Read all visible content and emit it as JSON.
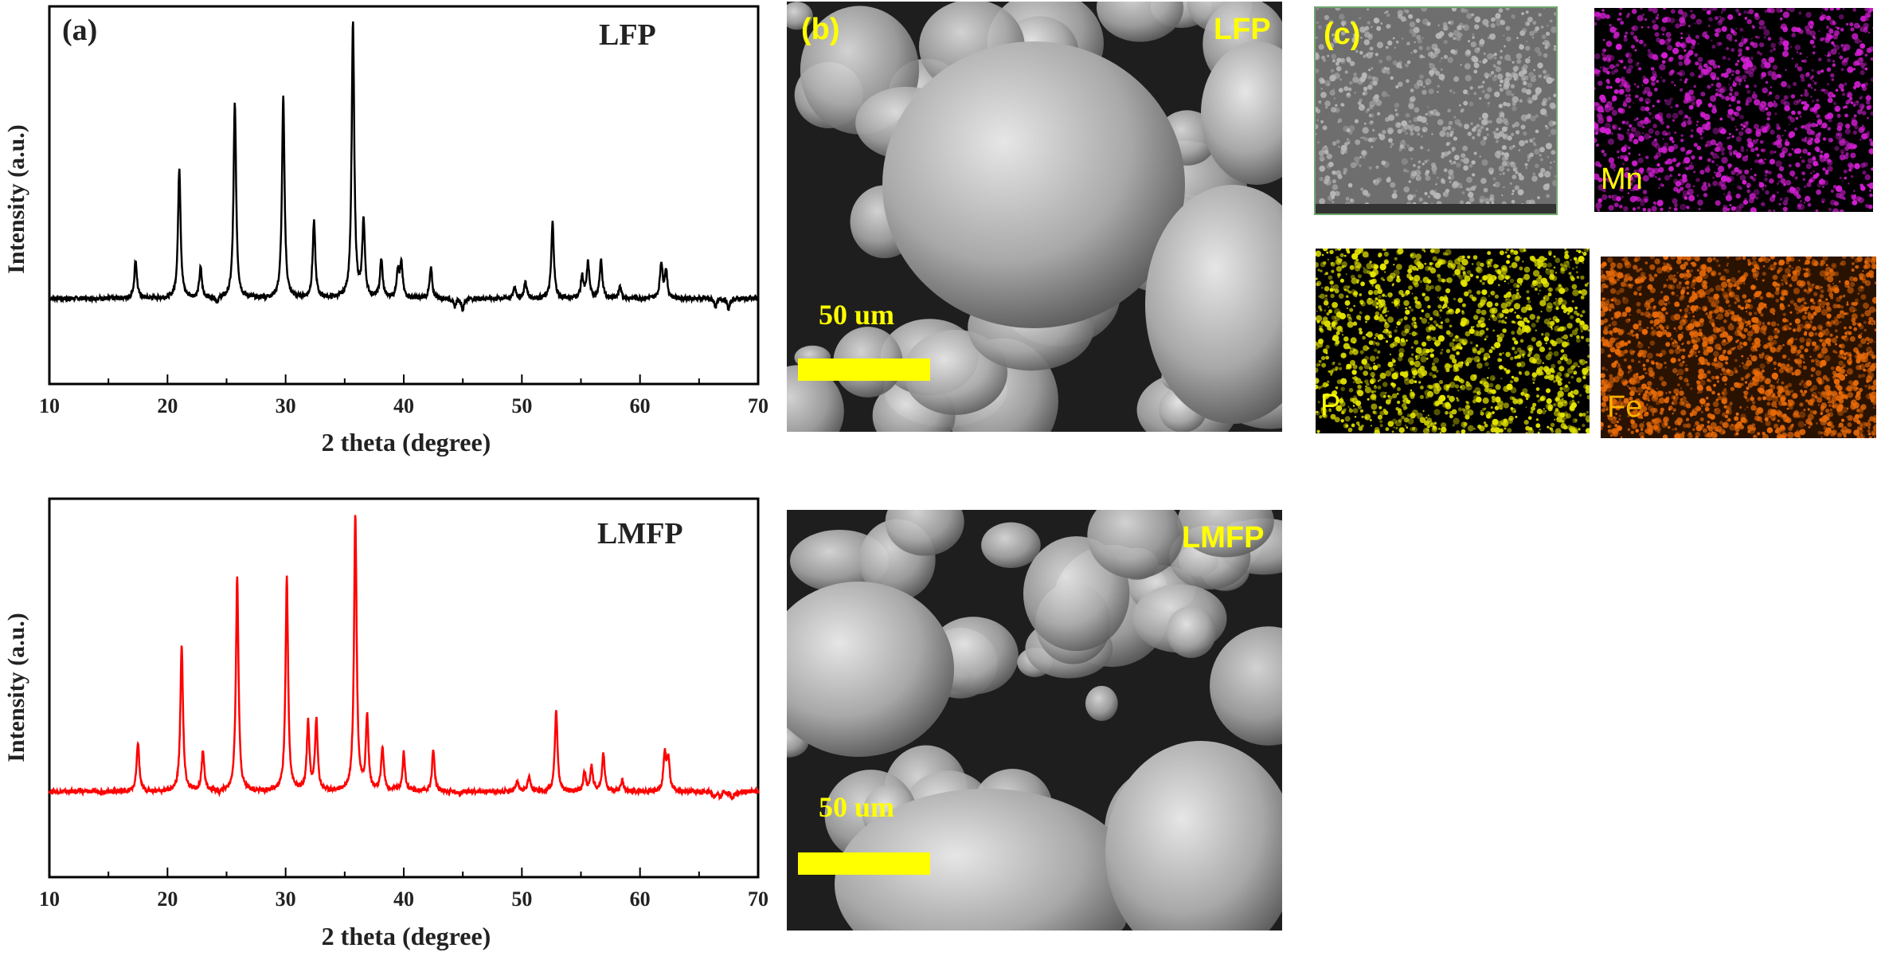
{
  "chart_data": [
    {
      "type": "line",
      "panel": "(a)",
      "title": "LFP",
      "xlabel": "2 theta (degree)",
      "ylabel": "Intensity (a.u.)",
      "xlim": [
        10,
        70
      ],
      "xticks": [
        "10",
        "20",
        "30",
        "40",
        "50",
        "60",
        "70"
      ],
      "ylim": [
        0,
        110
      ],
      "grid": false,
      "series": [
        {
          "color": "#000000",
          "baseline": 8,
          "peaks": [
            {
              "x": 17.3,
              "y": 22
            },
            {
              "x": 21.0,
              "y": 56
            },
            {
              "x": 22.8,
              "y": 19
            },
            {
              "x": 24.2,
              "y": 6
            },
            {
              "x": 25.7,
              "y": 80
            },
            {
              "x": 29.8,
              "y": 82
            },
            {
              "x": 32.4,
              "y": 36
            },
            {
              "x": 35.7,
              "y": 109
            },
            {
              "x": 36.6,
              "y": 36
            },
            {
              "x": 38.1,
              "y": 22
            },
            {
              "x": 39.5,
              "y": 18
            },
            {
              "x": 39.8,
              "y": 20
            },
            {
              "x": 42.3,
              "y": 19
            },
            {
              "x": 44.3,
              "y": 5
            },
            {
              "x": 45.0,
              "y": 4
            },
            {
              "x": 49.4,
              "y": 12
            },
            {
              "x": 50.3,
              "y": 14
            },
            {
              "x": 52.6,
              "y": 36
            },
            {
              "x": 55.1,
              "y": 16
            },
            {
              "x": 55.6,
              "y": 21
            },
            {
              "x": 56.7,
              "y": 22
            },
            {
              "x": 58.3,
              "y": 12
            },
            {
              "x": 61.8,
              "y": 21
            },
            {
              "x": 62.2,
              "y": 18
            },
            {
              "x": 66.4,
              "y": 5
            },
            {
              "x": 67.5,
              "y": 4
            }
          ]
        }
      ]
    },
    {
      "type": "line",
      "panel": "",
      "title": "LMFP",
      "xlabel": "2 theta (degree)",
      "ylabel": "Intensity (a.u.)",
      "xlim": [
        10,
        70
      ],
      "xticks": [
        "10",
        "20",
        "30",
        "40",
        "50",
        "60",
        "70"
      ],
      "ylim": [
        0,
        110
      ],
      "grid": false,
      "series": [
        {
          "color": "#ff0000",
          "baseline": 8,
          "peaks": [
            {
              "x": 17.5,
              "y": 26
            },
            {
              "x": 21.2,
              "y": 62
            },
            {
              "x": 23.0,
              "y": 23
            },
            {
              "x": 24.4,
              "y": 7
            },
            {
              "x": 25.9,
              "y": 87
            },
            {
              "x": 30.1,
              "y": 86
            },
            {
              "x": 31.9,
              "y": 33
            },
            {
              "x": 32.6,
              "y": 34
            },
            {
              "x": 35.9,
              "y": 110
            },
            {
              "x": 36.9,
              "y": 35
            },
            {
              "x": 38.2,
              "y": 24
            },
            {
              "x": 39.3,
              "y": 9
            },
            {
              "x": 40.0,
              "y": 22
            },
            {
              "x": 42.5,
              "y": 23
            },
            {
              "x": 44.7,
              "y": 7
            },
            {
              "x": 45.5,
              "y": 8
            },
            {
              "x": 49.6,
              "y": 12
            },
            {
              "x": 50.6,
              "y": 13
            },
            {
              "x": 52.9,
              "y": 38
            },
            {
              "x": 55.3,
              "y": 15
            },
            {
              "x": 55.9,
              "y": 17
            },
            {
              "x": 56.9,
              "y": 22
            },
            {
              "x": 58.5,
              "y": 12
            },
            {
              "x": 62.1,
              "y": 22
            },
            {
              "x": 62.4,
              "y": 20
            },
            {
              "x": 66.3,
              "y": 6
            },
            {
              "x": 66.8,
              "y": 6
            },
            {
              "x": 67.8,
              "y": 5
            }
          ]
        }
      ]
    }
  ],
  "sem": {
    "panel_b": "(b)",
    "lfp_label": "LFP",
    "lmfp_label": "LMFP",
    "scale_label": "50 um",
    "highlight_color": "#ffff00"
  },
  "eds": {
    "panel_c": "(c)",
    "mn_label": "Mn",
    "p_label": "P",
    "fe_label": "Fe",
    "mn_color": "#d21ed2",
    "p_color": "#e6e600",
    "fe_color": "#e86a08",
    "label_color": "#ffff00",
    "fe_label_color": "#ffb000"
  }
}
